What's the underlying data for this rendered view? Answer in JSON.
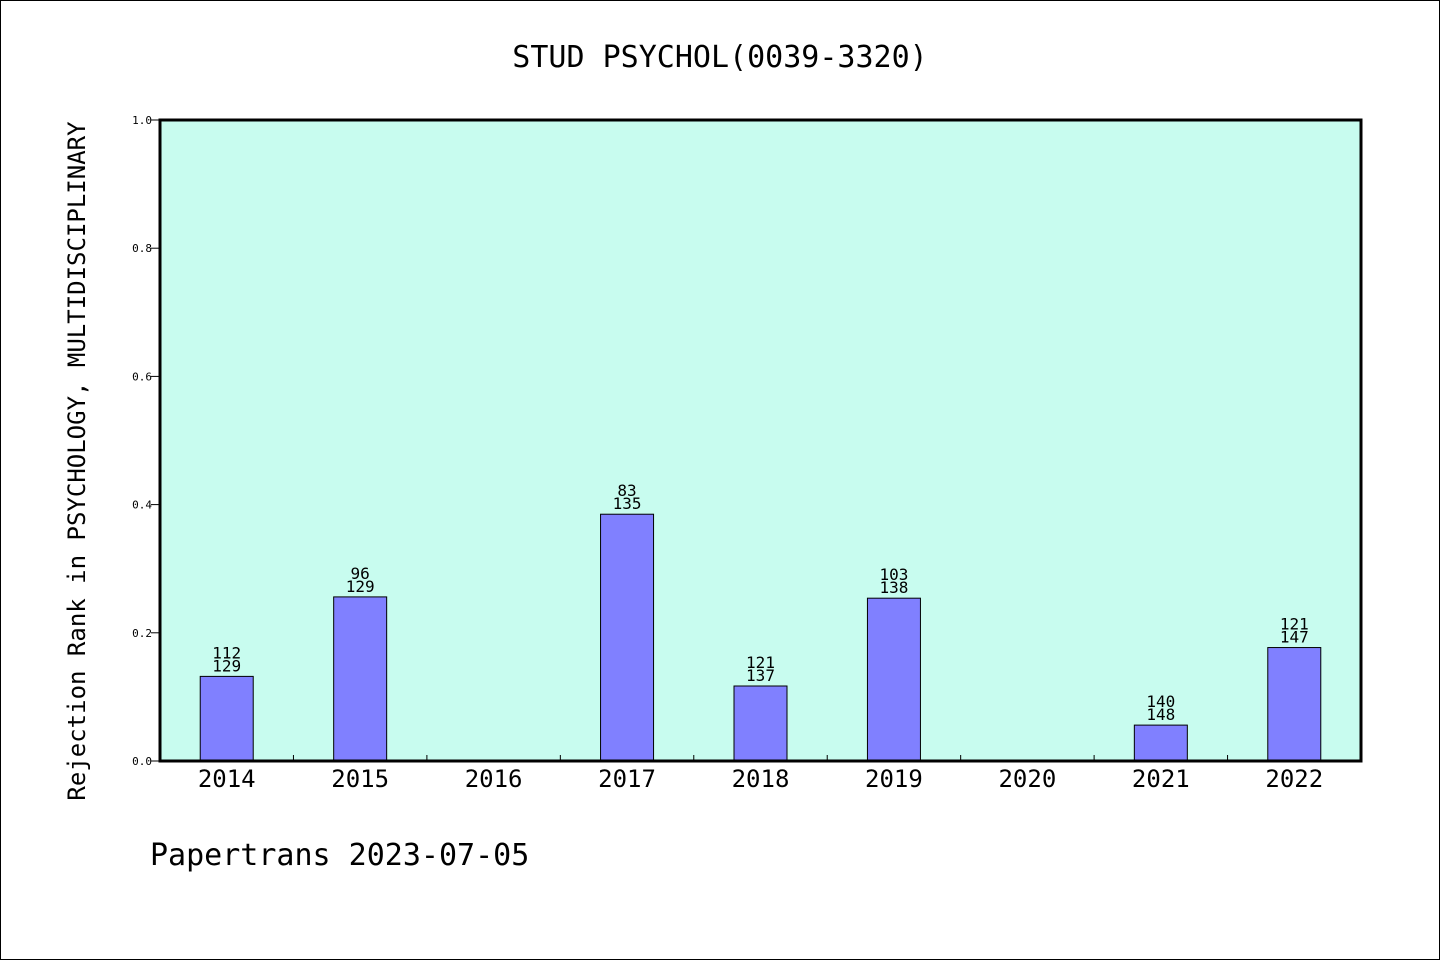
{
  "chart_data": {
    "type": "bar",
    "title": "STUD PSYCHOL(0039-3320)",
    "xlabel": "",
    "ylabel": "Rejection Rank in PSYCHOLOGY, MULTIDISCIPLINARY",
    "ylim": [
      0.0,
      1.0
    ],
    "yticks": [
      "0.0",
      "0.2",
      "0.4",
      "0.6",
      "0.8",
      "1.0"
    ],
    "grid": false,
    "categories": [
      "2014",
      "2015",
      "2016",
      "2017",
      "2018",
      "2019",
      "2020",
      "2021",
      "2022"
    ],
    "values": [
      0.132,
      0.256,
      null,
      0.385,
      0.117,
      0.254,
      null,
      0.056,
      0.177
    ],
    "labels_top": [
      "112",
      "96",
      "",
      "83",
      "121",
      "103",
      "",
      "140",
      "121"
    ],
    "labels_bottom": [
      "129",
      "129",
      "",
      "135",
      "137",
      "138",
      "",
      "148",
      "147"
    ]
  },
  "footer": {
    "text": "Papertrans 2023-07-05"
  },
  "colors": {
    "plot_background": "#c8fcef",
    "bar_fill": "#8080ff",
    "bar_stroke": "#000000",
    "axis": "#000000"
  }
}
